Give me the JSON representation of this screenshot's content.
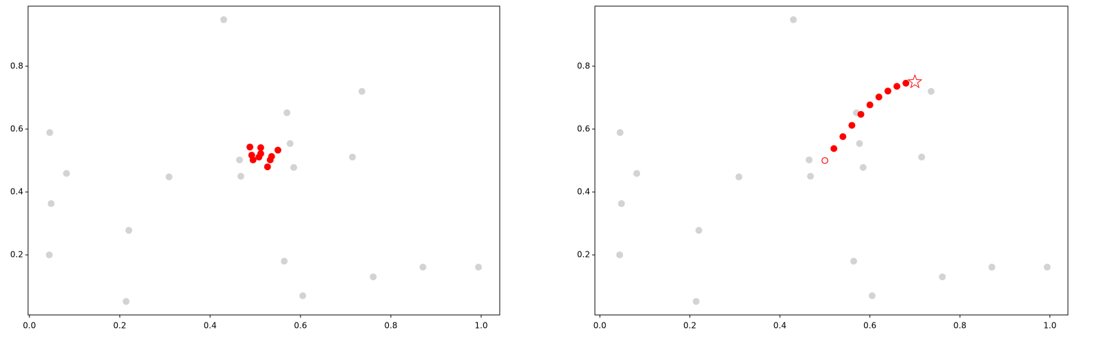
{
  "chart_data": [
    {
      "type": "scatter",
      "xlim": [
        -0.003,
        1.041
      ],
      "ylim": [
        0.009,
        0.991
      ],
      "xticks": [
        {
          "value": 0,
          "label": "0.0"
        },
        0.2,
        0.4,
        0.6,
        0.8,
        {
          "value": 1,
          "label": "1.0"
        }
      ],
      "yticks": [
        0.2,
        0.4,
        0.6,
        0.8
      ],
      "series": [
        {
          "color": "#d3d3d3",
          "marker": "circle",
          "x": [
            0.43,
            0.045,
            0.082,
            0.048,
            0.044,
            0.22,
            0.214,
            0.309,
            0.465,
            0.468,
            0.57,
            0.577,
            0.585,
            0.736,
            0.715,
            0.564,
            0.605,
            0.761,
            0.871,
            0.994
          ],
          "values": [
            0.948,
            0.589,
            0.459,
            0.363,
            0.2,
            0.278,
            0.052,
            0.448,
            0.502,
            0.45,
            0.652,
            0.554,
            0.478,
            0.72,
            0.511,
            0.18,
            0.07,
            0.13,
            0.161,
            0.161
          ]
        },
        {
          "color": "#ff0000",
          "marker": "circle",
          "x": [
            0.488,
            0.512,
            0.55,
            0.492,
            0.512,
            0.536,
            0.495,
            0.508,
            0.533,
            0.527
          ],
          "values": [
            0.543,
            0.541,
            0.533,
            0.517,
            0.522,
            0.513,
            0.502,
            0.511,
            0.502,
            0.48
          ]
        }
      ]
    },
    {
      "type": "scatter",
      "xlim": [
        -0.011,
        1.04
      ],
      "ylim": [
        0.009,
        0.991
      ],
      "xticks": [
        {
          "value": 0,
          "label": "0.0"
        },
        0.2,
        0.4,
        0.6,
        0.8,
        {
          "value": 1,
          "label": "1.0"
        }
      ],
      "yticks": [
        0.2,
        0.4,
        0.6,
        0.8
      ],
      "series": [
        {
          "color": "#d3d3d3",
          "marker": "circle",
          "x": [
            0.43,
            0.045,
            0.082,
            0.048,
            0.044,
            0.22,
            0.214,
            0.309,
            0.465,
            0.468,
            0.57,
            0.577,
            0.585,
            0.736,
            0.715,
            0.564,
            0.605,
            0.761,
            0.871,
            0.994
          ],
          "values": [
            0.948,
            0.589,
            0.459,
            0.363,
            0.2,
            0.278,
            0.052,
            0.448,
            0.502,
            0.45,
            0.652,
            0.554,
            0.478,
            0.72,
            0.511,
            0.18,
            0.07,
            0.13,
            0.161,
            0.161
          ]
        },
        {
          "color": "#ff0000",
          "marker": "open-circle",
          "x": [
            0.5
          ],
          "values": [
            0.5
          ]
        },
        {
          "color": "#ff0000",
          "marker": "circle",
          "x": [
            0.52,
            0.54,
            0.56,
            0.58,
            0.6,
            0.62,
            0.64,
            0.66,
            0.68
          ],
          "values": [
            0.538,
            0.576,
            0.612,
            0.647,
            0.677,
            0.702,
            0.721,
            0.736,
            0.746
          ]
        },
        {
          "color": "#ff0000",
          "marker": "star",
          "x": [
            0.7
          ],
          "values": [
            0.75
          ]
        }
      ]
    }
  ]
}
